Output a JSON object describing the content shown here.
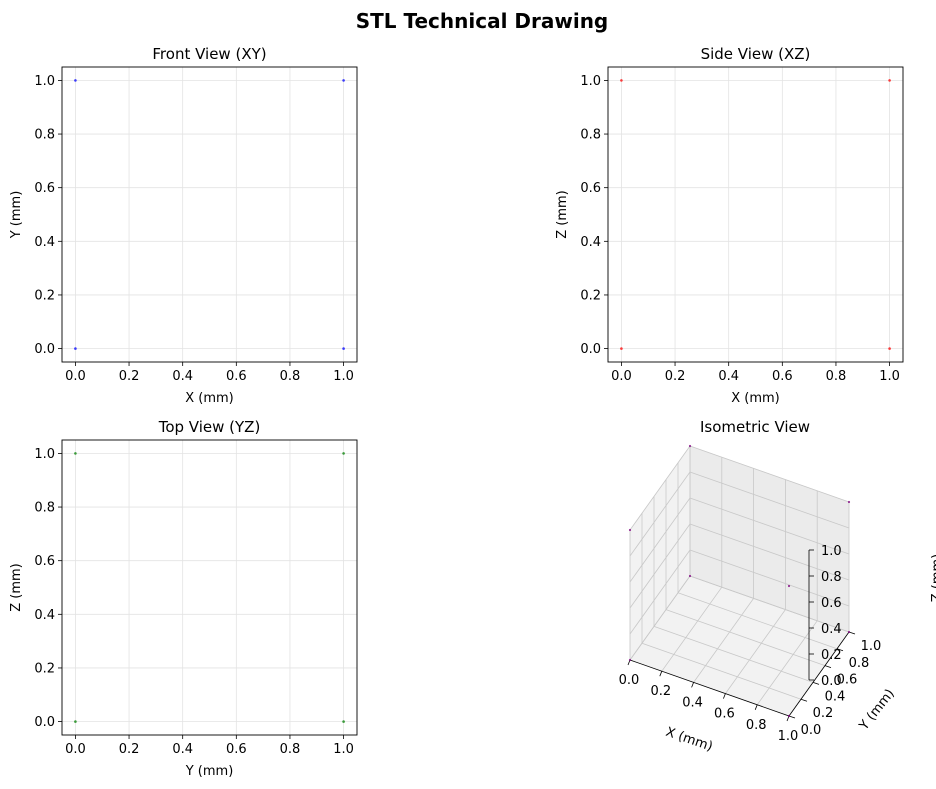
{
  "title": "STL Technical Drawing",
  "colors": {
    "front": "#0000ff",
    "side": "#ff0000",
    "top": "#008000",
    "iso": "#800080"
  },
  "chart_data": [
    {
      "type": "scatter",
      "title": "Front View (XY)",
      "xlabel": "X (mm)",
      "ylabel": "Y (mm)",
      "xlim": [
        -0.05,
        1.05
      ],
      "ylim": [
        -0.05,
        1.05
      ],
      "xticks": [
        0.0,
        0.2,
        0.4,
        0.6,
        0.8,
        1.0
      ],
      "yticks": [
        0.0,
        0.2,
        0.4,
        0.6,
        0.8,
        1.0
      ],
      "grid": true,
      "color_key": "front",
      "points": [
        [
          0,
          0
        ],
        [
          1,
          0
        ],
        [
          0,
          1
        ],
        [
          1,
          1
        ]
      ]
    },
    {
      "type": "scatter",
      "title": "Side View (XZ)",
      "xlabel": "X (mm)",
      "ylabel": "Z (mm)",
      "xlim": [
        -0.05,
        1.05
      ],
      "ylim": [
        -0.05,
        1.05
      ],
      "xticks": [
        0.0,
        0.2,
        0.4,
        0.6,
        0.8,
        1.0
      ],
      "yticks": [
        0.0,
        0.2,
        0.4,
        0.6,
        0.8,
        1.0
      ],
      "grid": true,
      "color_key": "side",
      "points": [
        [
          0,
          0
        ],
        [
          1,
          0
        ],
        [
          0,
          1
        ],
        [
          1,
          1
        ]
      ]
    },
    {
      "type": "scatter",
      "title": "Top View (YZ)",
      "xlabel": "Y (mm)",
      "ylabel": "Z (mm)",
      "xlim": [
        -0.05,
        1.05
      ],
      "ylim": [
        -0.05,
        1.05
      ],
      "xticks": [
        0.0,
        0.2,
        0.4,
        0.6,
        0.8,
        1.0
      ],
      "yticks": [
        0.0,
        0.2,
        0.4,
        0.6,
        0.8,
        1.0
      ],
      "grid": true,
      "color_key": "top",
      "points": [
        [
          0,
          0
        ],
        [
          1,
          0
        ],
        [
          0,
          1
        ],
        [
          1,
          1
        ]
      ]
    },
    {
      "type": "scatter3d",
      "title": "Isometric View",
      "xlabel": "X (mm)",
      "ylabel": "Y (mm)",
      "zlabel": "Z (mm)",
      "xlim": [
        0,
        1
      ],
      "ylim": [
        0,
        1
      ],
      "zlim": [
        0,
        1
      ],
      "xticks": [
        0.0,
        0.2,
        0.4,
        0.6,
        0.8,
        1.0
      ],
      "yticks": [
        0.0,
        0.2,
        0.4,
        0.6,
        0.8,
        1.0
      ],
      "zticks": [
        0.0,
        0.2,
        0.4,
        0.6,
        0.8,
        1.0
      ],
      "grid": true,
      "color_key": "iso",
      "points": [
        [
          0,
          0,
          0
        ],
        [
          1,
          0,
          0
        ],
        [
          0,
          1,
          0
        ],
        [
          1,
          1,
          0
        ],
        [
          0,
          0,
          1
        ],
        [
          1,
          0,
          1
        ],
        [
          0,
          1,
          1
        ],
        [
          1,
          1,
          1
        ]
      ]
    }
  ]
}
